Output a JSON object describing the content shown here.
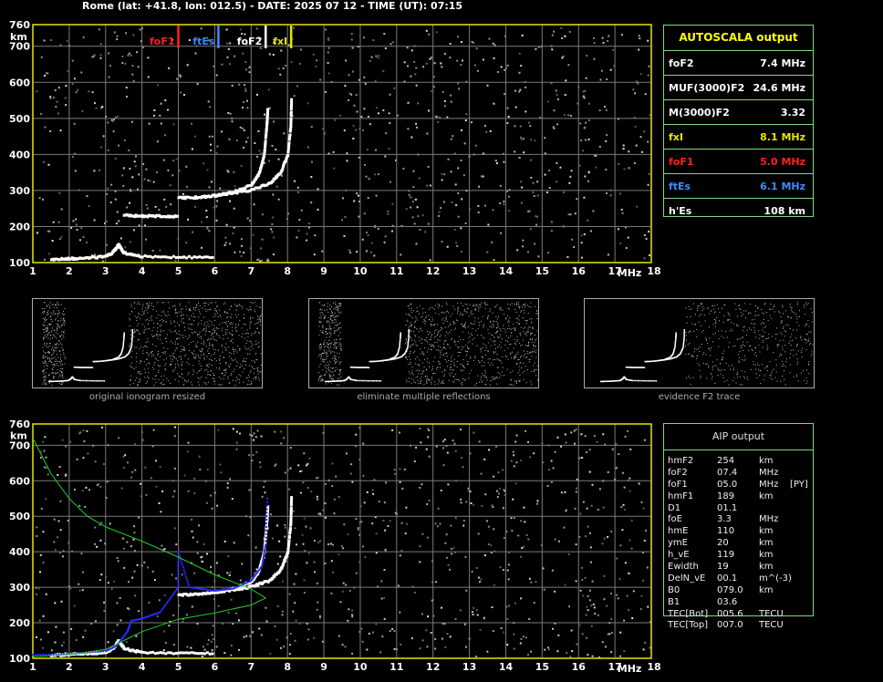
{
  "header": {
    "title": "Rome (lat: +41.8, lon: 012.5) - DATE: 2025 07 12 - TIME (UT): 07:15"
  },
  "autoscala": {
    "title": "AUTOSCALA output",
    "rows": [
      {
        "label": "foF2",
        "value": "7.4 MHz",
        "color": "#ffffff"
      },
      {
        "label": "MUF(3000)F2",
        "value": "24.6 MHz",
        "color": "#ffffff"
      },
      {
        "label": "M(3000)F2",
        "value": "3.32",
        "color": "#ffffff"
      },
      {
        "label": "fxI",
        "value": "8.1 MHz",
        "color": "#e5e500"
      },
      {
        "label": "foF1",
        "value": "5.0 MHz",
        "color": "#ff2020"
      },
      {
        "label": "ftEs",
        "value": "6.1 MHz",
        "color": "#3c8cff"
      },
      {
        "label": "h'Es",
        "value": "108 km",
        "color": "#ffffff"
      }
    ]
  },
  "aip": {
    "title": "AIP output",
    "rows": [
      {
        "k": "hmF2",
        "v": "254",
        "u": "km",
        "x": ""
      },
      {
        "k": "foF2",
        "v": "07.4",
        "u": "MHz",
        "x": ""
      },
      {
        "k": "foF1",
        "v": "05.0",
        "u": "MHz",
        "x": "[PY]"
      },
      {
        "k": "hmF1",
        "v": "189",
        "u": "km",
        "x": ""
      },
      {
        "k": "D1",
        "v": "01.1",
        "u": "",
        "x": ""
      },
      {
        "k": "foE",
        "v": "3.3",
        "u": "MHz",
        "x": ""
      },
      {
        "k": "hmE",
        "v": "110",
        "u": "km",
        "x": ""
      },
      {
        "k": "ymE",
        "v": "20",
        "u": "km",
        "x": ""
      },
      {
        "k": "h_vE",
        "v": "119",
        "u": "km",
        "x": ""
      },
      {
        "k": "Ewidth",
        "v": "19",
        "u": "km",
        "x": ""
      },
      {
        "k": "DelN_vE",
        "v": "00.1",
        "u": "m^(-3)",
        "x": ""
      },
      {
        "k": "B0",
        "v": "079.0",
        "u": "km",
        "x": ""
      },
      {
        "k": "B1",
        "v": "03.6",
        "u": "",
        "x": ""
      },
      {
        "k": "TEC[Bot]",
        "v": "005.6",
        "u": "TECU",
        "x": ""
      },
      {
        "k": "TEC[Top]",
        "v": "007.0",
        "u": "TECU",
        "x": ""
      }
    ]
  },
  "thumbnails": [
    {
      "caption": "original ionogram resized"
    },
    {
      "caption": "eliminate multiple reflections"
    },
    {
      "caption": "evidence F2 trace"
    }
  ],
  "colors": {
    "axis": "#e5e500",
    "grid": "#7a7a7a",
    "foF1": "#ff2020",
    "ftEs": "#3c8cff",
    "foF2": "#ffffff",
    "fxI": "#e5e500",
    "profile": "#22cc22",
    "aip_trace": "#2a2aff"
  },
  "chart_data": [
    {
      "type": "scatter",
      "title": "",
      "xlabel": "MHz",
      "ylabel": "km",
      "xlim": [
        1,
        18
      ],
      "ylim": [
        100,
        760
      ],
      "x_ticks": [
        "1",
        "2",
        "3",
        "4",
        "5",
        "6",
        "7",
        "8",
        "9",
        "10",
        "11",
        "12",
        "13",
        "14",
        "15",
        "16",
        "17",
        "18"
      ],
      "y_ticks": [
        "100",
        "200",
        "300",
        "400",
        "500",
        "600",
        "700",
        "760"
      ],
      "markers": [
        {
          "name": "foF1",
          "freq": 5.0
        },
        {
          "name": "ftEs",
          "freq": 6.1
        },
        {
          "name": "foF2",
          "freq": 7.4
        },
        {
          "name": "fxI",
          "freq": 8.1
        }
      ],
      "series": [
        {
          "name": "",
          "points": [
            [
              1.5,
              110
            ],
            [
              2,
              112
            ],
            [
              2.5,
              114
            ],
            [
              3,
              118
            ],
            [
              3.2,
              130
            ],
            [
              3.35,
              150
            ],
            [
              3.5,
              128
            ],
            [
              4,
              118
            ],
            [
              5,
              116
            ],
            [
              6,
              115
            ]
          ]
        },
        {
          "name": "",
          "points": [
            [
              5,
              280
            ],
            [
              5.5,
              282
            ],
            [
              6,
              287
            ],
            [
              6.5,
              296
            ],
            [
              7,
              318
            ],
            [
              7.2,
              345
            ],
            [
              7.35,
              400
            ],
            [
              7.42,
              480
            ],
            [
              7.45,
              530
            ]
          ]
        },
        {
          "name": "",
          "points": [
            [
              6,
              288
            ],
            [
              6.5,
              294
            ],
            [
              7,
              303
            ],
            [
              7.5,
              320
            ],
            [
              7.8,
              350
            ],
            [
              8,
              400
            ],
            [
              8.08,
              480
            ],
            [
              8.1,
              560
            ]
          ]
        },
        {
          "name": "",
          "points": [
            [
              3.5,
              232
            ],
            [
              4,
              230
            ],
            [
              4.5,
              230
            ],
            [
              5,
              229
            ]
          ]
        }
      ]
    },
    {
      "type": "scatter",
      "title": "",
      "xlabel": "MHz",
      "ylabel": "km",
      "xlim": [
        1,
        18
      ],
      "ylim": [
        100,
        760
      ],
      "x_ticks": [
        "1",
        "2",
        "3",
        "4",
        "5",
        "6",
        "7",
        "8",
        "9",
        "10",
        "11",
        "12",
        "13",
        "14",
        "15",
        "16",
        "17",
        "18"
      ],
      "y_ticks": [
        "100",
        "200",
        "300",
        "400",
        "500",
        "600",
        "700",
        "760"
      ],
      "series": [
        {
          "name": "",
          "points": [
            [
              1.5,
              110
            ],
            [
              2,
              112
            ],
            [
              2.5,
              114
            ],
            [
              3,
              118
            ],
            [
              3.2,
              130
            ],
            [
              3.35,
              150
            ],
            [
              3.5,
              128
            ],
            [
              4,
              118
            ],
            [
              5,
              116
            ],
            [
              6,
              115
            ]
          ]
        },
        {
          "name": "",
          "points": [
            [
              5,
              280
            ],
            [
              5.5,
              282
            ],
            [
              6,
              287
            ],
            [
              6.5,
              296
            ],
            [
              7,
              318
            ],
            [
              7.2,
              345
            ],
            [
              7.35,
              400
            ],
            [
              7.42,
              480
            ],
            [
              7.45,
              530
            ]
          ]
        },
        {
          "name": "",
          "points": [
            [
              6,
              288
            ],
            [
              6.5,
              294
            ],
            [
              7,
              303
            ],
            [
              7.5,
              320
            ],
            [
              7.8,
              350
            ],
            [
              8,
              400
            ],
            [
              8.08,
              480
            ],
            [
              8.1,
              560
            ]
          ]
        },
        {
          "name": "",
          "points": [
            [
              1,
              110
            ],
            [
              2,
              112
            ],
            [
              3,
              120
            ],
            [
              3.3,
              135
            ],
            [
              3.6,
              175
            ],
            [
              3.7,
              205
            ],
            [
              4,
              212
            ],
            [
              4.5,
              230
            ],
            [
              5,
              300
            ],
            [
              5,
              400
            ],
            [
              5.3,
              300
            ],
            [
              6,
              290
            ],
            [
              6.5,
              296
            ],
            [
              7,
              318
            ],
            [
              7.3,
              360
            ],
            [
              7.4,
              420
            ],
            [
              7.45,
              560
            ]
          ]
        },
        {
          "name": "",
          "points": [
            [
              1,
              720
            ],
            [
              1.5,
              620
            ],
            [
              2,
              550
            ],
            [
              2.5,
              500
            ],
            [
              3,
              470
            ],
            [
              4,
              430
            ],
            [
              5,
              385
            ],
            [
              6,
              335
            ],
            [
              7,
              295
            ],
            [
              7.4,
              270
            ],
            [
              7,
              250
            ],
            [
              6,
              228
            ],
            [
              5,
              210
            ],
            [
              4,
              175
            ],
            [
              3.5,
              150
            ],
            [
              3,
              125
            ],
            [
              2,
              110
            ],
            [
              1,
              105
            ]
          ]
        }
      ]
    }
  ]
}
